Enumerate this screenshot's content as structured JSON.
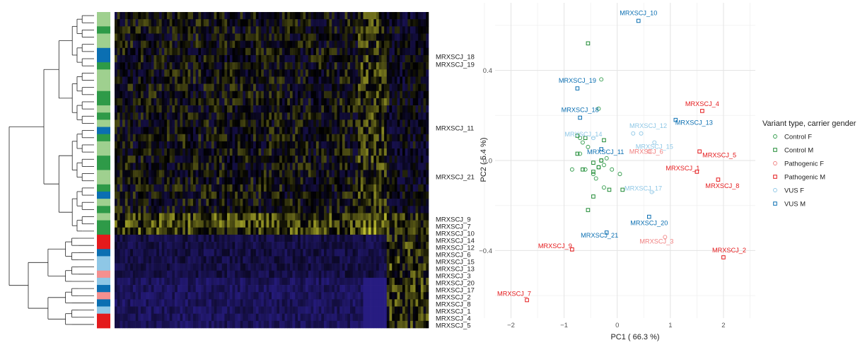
{
  "colors": {
    "control": "#2e9a48",
    "control_light": "#9fd08f",
    "pathogenic": "#e41a1c",
    "pathogenic_light": "#f4908f",
    "vus": "#0b6fb2",
    "vus_light": "#8ec7e6"
  },
  "chart_data": [
    {
      "type": "heatmap",
      "row_labels": [
        {
          "label": "MRXSCJ_18",
          "group": "VUS M"
        },
        {
          "label": "MRXSCJ_19",
          "group": "VUS M"
        },
        {
          "label": "MRXSCJ_11",
          "group": "VUS M"
        },
        {
          "label": "MRXSCJ_21",
          "group": "VUS M"
        },
        {
          "label": "MRXSCJ_9",
          "group": "Pathogenic M"
        },
        {
          "label": "MRXSCJ_7",
          "group": "Pathogenic M"
        },
        {
          "label": "MRXSCJ_10",
          "group": "VUS M"
        },
        {
          "label": "MRXSCJ_14",
          "group": "VUS F"
        },
        {
          "label": "MRXSCJ_12",
          "group": "VUS F"
        },
        {
          "label": "MRXSCJ_6",
          "group": "Pathogenic F"
        },
        {
          "label": "MRXSCJ_15",
          "group": "VUS F"
        },
        {
          "label": "MRXSCJ_13",
          "group": "VUS M"
        },
        {
          "label": "MRXSCJ_3",
          "group": "Pathogenic F"
        },
        {
          "label": "MRXSCJ_20",
          "group": "VUS M"
        },
        {
          "label": "MRXSCJ_17",
          "group": "VUS F"
        },
        {
          "label": "MRXSCJ_2",
          "group": "Pathogenic M"
        },
        {
          "label": "MRXSCJ_8",
          "group": "Pathogenic M"
        },
        {
          "label": "MRXSCJ_1",
          "group": "Pathogenic M"
        },
        {
          "label": "MRXSCJ_4",
          "group": "Pathogenic M"
        },
        {
          "label": "MRXSCJ_5",
          "group": "Pathogenic M"
        }
      ],
      "color_scale": [
        "#2b1f8f",
        "#000000",
        "#c8c832"
      ]
    },
    {
      "type": "scatter",
      "xlabel": "PC1 ( 66.3 %)",
      "ylabel": "PC2 ( 5.4 %)",
      "xlim": [
        -2.3,
        2.6
      ],
      "ylim": [
        -0.7,
        0.7
      ],
      "x_ticks": [
        -2,
        -1,
        0,
        1,
        2
      ],
      "y_ticks": [
        -0.4,
        0.0,
        0.4
      ],
      "x_tick_labels": [
        "−2",
        "−1",
        "0",
        "1",
        "2"
      ],
      "y_tick_labels": [
        "−0.4",
        "0.0",
        "0.4"
      ],
      "grid": true,
      "legend_position": "right",
      "legend_title": "Variant type, carrier gender",
      "series": [
        {
          "name": "Control F",
          "key": "cf",
          "color": "#2e9a48",
          "marker": "circle",
          "points": [
            {
              "x": -0.7,
              "y": 0.1
            },
            {
              "x": -0.65,
              "y": 0.08
            },
            {
              "x": -0.55,
              "y": 0.06
            },
            {
              "x": -0.7,
              "y": 0.03
            },
            {
              "x": -0.85,
              "y": -0.04
            },
            {
              "x": -0.6,
              "y": -0.04
            },
            {
              "x": -0.45,
              "y": -0.06
            },
            {
              "x": -0.35,
              "y": -0.03
            },
            {
              "x": -0.25,
              "y": -0.02
            },
            {
              "x": -0.3,
              "y": 0.0
            },
            {
              "x": -0.2,
              "y": 0.01
            },
            {
              "x": -0.1,
              "y": -0.04
            },
            {
              "x": 0.05,
              "y": -0.06
            },
            {
              "x": -0.4,
              "y": -0.08
            },
            {
              "x": -0.25,
              "y": -0.12
            },
            {
              "x": -0.35,
              "y": 0.23
            },
            {
              "x": -0.3,
              "y": 0.36
            }
          ]
        },
        {
          "name": "Control M",
          "key": "cm",
          "color": "#1f8a34",
          "marker": "square",
          "points": [
            {
              "x": -0.55,
              "y": 0.52
            },
            {
              "x": -0.75,
              "y": 0.11
            },
            {
              "x": -0.6,
              "y": 0.1
            },
            {
              "x": -0.25,
              "y": 0.09
            },
            {
              "x": -0.75,
              "y": 0.03
            },
            {
              "x": -0.3,
              "y": 0.0
            },
            {
              "x": -0.45,
              "y": -0.01
            },
            {
              "x": -0.35,
              "y": -0.03
            },
            {
              "x": -0.65,
              "y": -0.04
            },
            {
              "x": -0.45,
              "y": -0.05
            },
            {
              "x": -0.15,
              "y": -0.13
            },
            {
              "x": 0.1,
              "y": -0.13
            },
            {
              "x": -0.45,
              "y": -0.16
            },
            {
              "x": -0.55,
              "y": -0.22
            }
          ]
        },
        {
          "name": "Pathogenic F",
          "key": "pf",
          "color": "#f08080",
          "marker": "circle",
          "points": [
            {
              "x": 0.6,
              "y": 0.04,
              "label": "MRXSCJ_6"
            },
            {
              "x": 0.9,
              "y": -0.34,
              "label": "MRXSCJ_3"
            }
          ]
        },
        {
          "name": "Pathogenic M",
          "key": "pm",
          "color": "#e41a1c",
          "marker": "square",
          "points": [
            {
              "x": 1.6,
              "y": 0.22,
              "label": "MRXSCJ_4"
            },
            {
              "x": 1.55,
              "y": 0.04,
              "label": "MRXSCJ_5"
            },
            {
              "x": 1.5,
              "y": -0.05,
              "label": "MRXSCJ_1"
            },
            {
              "x": 1.9,
              "y": -0.085,
              "label": "MRXSCJ_8"
            },
            {
              "x": 2.0,
              "y": -0.43,
              "label": "MRXSCJ_2"
            },
            {
              "x": -0.85,
              "y": -0.395,
              "label": "MRXSCJ_9"
            },
            {
              "x": -1.7,
              "y": -0.62,
              "label": "MRXSCJ_7"
            }
          ]
        },
        {
          "name": "VUS F",
          "key": "vf",
          "color": "#8ec7e6",
          "marker": "circle",
          "points": [
            {
              "x": 0.45,
              "y": 0.12,
              "label": "MRXSCJ_12"
            },
            {
              "x": 0.3,
              "y": 0.12
            },
            {
              "x": -0.45,
              "y": 0.1,
              "label": "MRXSCJ_14"
            },
            {
              "x": 0.7,
              "y": 0.08,
              "label": "MRXSCJ_15"
            },
            {
              "x": 0.65,
              "y": -0.14,
              "label": "MRXSCJ_17"
            }
          ]
        },
        {
          "name": "VUS M",
          "key": "vm",
          "color": "#0b6fb2",
          "marker": "square",
          "points": [
            {
              "x": 0.4,
              "y": 0.62,
              "label": "MRXSCJ_10"
            },
            {
              "x": -0.75,
              "y": 0.32,
              "label": "MRXSCJ_19"
            },
            {
              "x": -0.7,
              "y": 0.19,
              "label": "MRXSCJ_18"
            },
            {
              "x": 1.1,
              "y": 0.18,
              "label": "MRXSCJ_13"
            },
            {
              "x": -0.3,
              "y": 0.05,
              "label": "MRXSCJ_11"
            },
            {
              "x": 0.6,
              "y": -0.25,
              "label": "MRXSCJ_20"
            },
            {
              "x": -0.2,
              "y": -0.32,
              "label": "MRXSCJ_21"
            }
          ]
        }
      ]
    }
  ]
}
